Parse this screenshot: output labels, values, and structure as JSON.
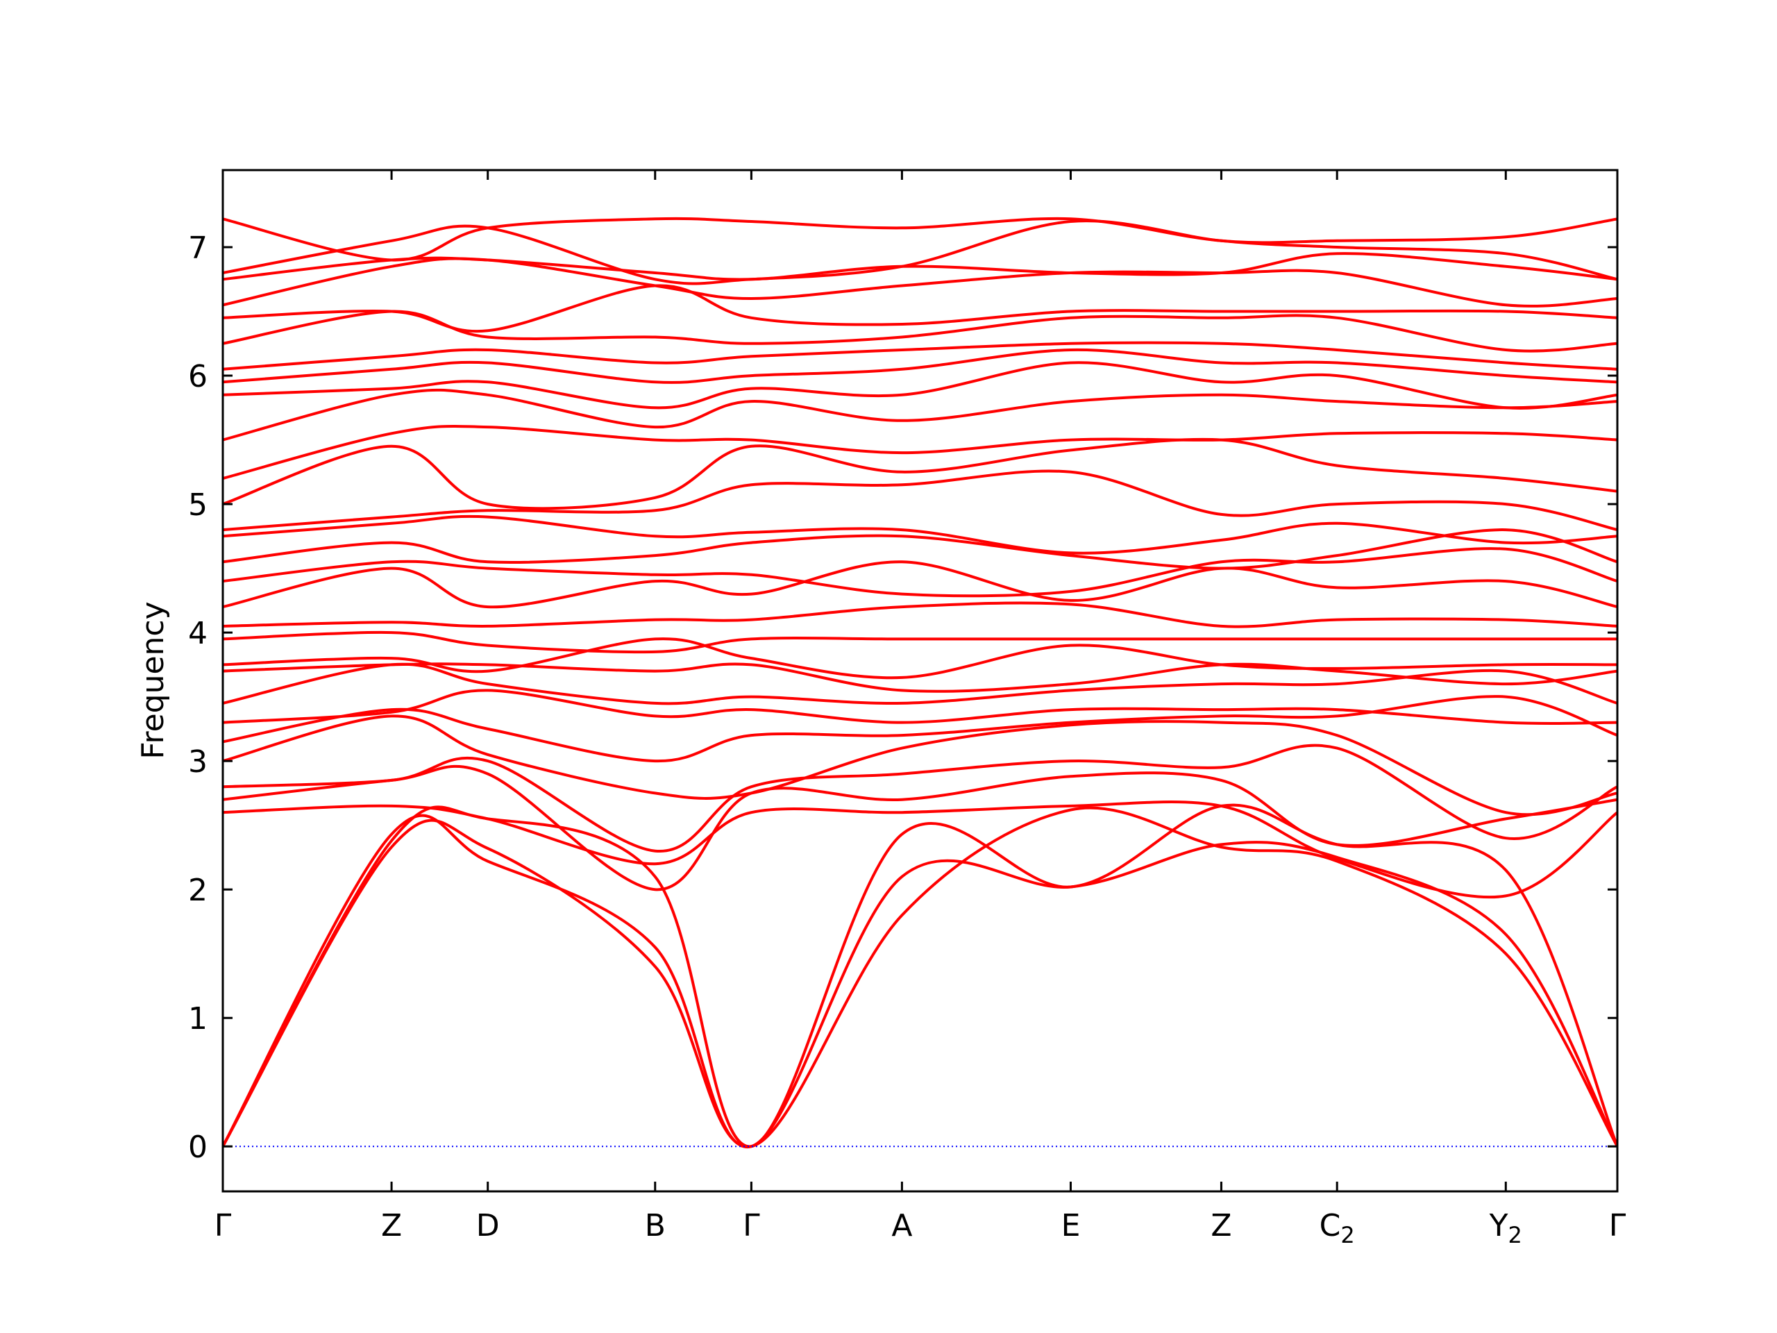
{
  "chart_data": {
    "type": "line",
    "title": "",
    "xlabel": "",
    "ylabel": "Frequency",
    "ylim": [
      -0.35,
      7.6
    ],
    "yticks": [
      0,
      1,
      2,
      3,
      4,
      5,
      6,
      7
    ],
    "grid": false,
    "legend": "none",
    "line_color": "#ff0000",
    "zero_line_color": "#0000ff",
    "high_points": [
      {
        "label": "Γ",
        "sub": "",
        "x": 0.0
      },
      {
        "label": "Z",
        "sub": "",
        "x": 1.21
      },
      {
        "label": "D",
        "sub": "",
        "x": 1.9
      },
      {
        "label": "B",
        "sub": "",
        "x": 3.1
      },
      {
        "label": "Γ",
        "sub": "",
        "x": 3.79
      },
      {
        "label": "A",
        "sub": "",
        "x": 4.87
      },
      {
        "label": "E",
        "sub": "",
        "x": 6.08
      },
      {
        "label": "Z",
        "sub": "",
        "x": 7.16
      },
      {
        "label": "C",
        "sub": "2",
        "x": 7.99
      },
      {
        "label": "Y",
        "sub": "2",
        "x": 9.2
      },
      {
        "label": "Γ",
        "sub": "",
        "x": 10.0
      }
    ],
    "series": [
      {
        "y": [
          0.0,
          2.33,
          2.32,
          1.4,
          0.0,
          1.8,
          2.62,
          2.33,
          2.22,
          1.5,
          0.0
        ]
      },
      {
        "y": [
          0.0,
          2.43,
          2.22,
          1.55,
          0.0,
          2.1,
          2.02,
          2.35,
          2.25,
          1.65,
          0.0
        ]
      },
      {
        "y": [
          0.0,
          2.38,
          2.55,
          2.1,
          0.0,
          2.43,
          2.02,
          2.65,
          2.35,
          2.15,
          0.0
        ]
      },
      {
        "y": [
          2.6,
          2.65,
          2.55,
          2.2,
          2.6,
          2.6,
          2.65,
          2.65,
          2.24,
          1.95,
          2.6
        ]
      },
      {
        "y": [
          2.7,
          2.85,
          2.9,
          2.0,
          2.75,
          2.7,
          2.88,
          2.85,
          2.35,
          2.55,
          2.7
        ]
      },
      {
        "y": [
          2.8,
          2.85,
          3.0,
          2.3,
          2.8,
          2.9,
          3.0,
          2.95,
          3.1,
          2.4,
          2.8
        ]
      },
      {
        "y": [
          3.0,
          3.35,
          3.05,
          2.75,
          2.75,
          3.1,
          3.28,
          3.3,
          3.2,
          2.6,
          2.75
        ]
      },
      {
        "y": [
          3.15,
          3.4,
          3.25,
          3.0,
          3.2,
          3.2,
          3.3,
          3.35,
          3.35,
          3.5,
          3.2
        ]
      },
      {
        "y": [
          3.3,
          3.38,
          3.55,
          3.35,
          3.4,
          3.3,
          3.4,
          3.4,
          3.4,
          3.3,
          3.3
        ]
      },
      {
        "y": [
          3.45,
          3.75,
          3.6,
          3.45,
          3.5,
          3.45,
          3.55,
          3.6,
          3.6,
          3.7,
          3.45
        ]
      },
      {
        "y": [
          3.7,
          3.75,
          3.75,
          3.7,
          3.75,
          3.55,
          3.6,
          3.75,
          3.7,
          3.6,
          3.7
        ]
      },
      {
        "y": [
          3.75,
          3.8,
          3.7,
          3.95,
          3.8,
          3.65,
          3.9,
          3.75,
          3.72,
          3.75,
          3.75
        ]
      },
      {
        "y": [
          3.95,
          4.0,
          3.9,
          3.85,
          3.95,
          3.95,
          3.95,
          3.95,
          3.95,
          3.95,
          3.95
        ]
      },
      {
        "y": [
          4.05,
          4.08,
          4.05,
          4.1,
          4.1,
          4.2,
          4.22,
          4.05,
          4.1,
          4.1,
          4.05
        ]
      },
      {
        "y": [
          4.2,
          4.5,
          4.2,
          4.4,
          4.3,
          4.55,
          4.25,
          4.5,
          4.35,
          4.4,
          4.2
        ]
      },
      {
        "y": [
          4.4,
          4.55,
          4.5,
          4.45,
          4.45,
          4.3,
          4.32,
          4.55,
          4.55,
          4.65,
          4.4
        ]
      },
      {
        "y": [
          4.55,
          4.7,
          4.55,
          4.6,
          4.7,
          4.75,
          4.6,
          4.5,
          4.6,
          4.8,
          4.55
        ]
      },
      {
        "y": [
          4.75,
          4.85,
          4.9,
          4.75,
          4.78,
          4.8,
          4.62,
          4.72,
          4.85,
          4.7,
          4.75
        ]
      },
      {
        "y": [
          4.8,
          4.9,
          4.95,
          4.95,
          5.15,
          5.15,
          5.25,
          4.92,
          5.0,
          5.0,
          4.8
        ]
      },
      {
        "y": [
          5.0,
          5.45,
          5.0,
          5.05,
          5.45,
          5.25,
          5.42,
          5.5,
          5.3,
          5.2,
          5.1
        ]
      },
      {
        "y": [
          5.2,
          5.55,
          5.6,
          5.5,
          5.5,
          5.4,
          5.5,
          5.5,
          5.55,
          5.55,
          5.5
        ]
      },
      {
        "y": [
          5.5,
          5.85,
          5.85,
          5.6,
          5.8,
          5.65,
          5.8,
          5.85,
          5.8,
          5.75,
          5.8
        ]
      },
      {
        "y": [
          5.85,
          5.9,
          5.95,
          5.75,
          5.9,
          5.85,
          6.1,
          5.95,
          6.0,
          5.75,
          5.85
        ]
      },
      {
        "y": [
          5.95,
          6.05,
          6.1,
          5.95,
          6.0,
          6.05,
          6.2,
          6.1,
          6.1,
          6.0,
          5.95
        ]
      },
      {
        "y": [
          6.05,
          6.15,
          6.2,
          6.1,
          6.15,
          6.2,
          6.25,
          6.25,
          6.2,
          6.1,
          6.05
        ]
      },
      {
        "y": [
          6.25,
          6.5,
          6.3,
          6.3,
          6.25,
          6.3,
          6.45,
          6.45,
          6.45,
          6.2,
          6.25
        ]
      },
      {
        "y": [
          6.45,
          6.5,
          6.35,
          6.7,
          6.45,
          6.4,
          6.5,
          6.5,
          6.5,
          6.5,
          6.45
        ]
      },
      {
        "y": [
          6.55,
          6.85,
          6.9,
          6.7,
          6.6,
          6.7,
          6.8,
          6.8,
          6.8,
          6.55,
          6.6
        ]
      },
      {
        "y": [
          6.75,
          6.9,
          6.9,
          6.8,
          6.75,
          6.85,
          6.8,
          6.8,
          6.95,
          6.85,
          6.75
        ]
      },
      {
        "y": [
          6.8,
          7.05,
          7.15,
          6.75,
          6.75,
          6.85,
          7.2,
          7.05,
          7.0,
          6.95,
          6.75
        ]
      },
      {
        "y": [
          7.22,
          6.9,
          7.15,
          7.22,
          7.2,
          7.15,
          7.22,
          7.05,
          7.05,
          7.08,
          7.22
        ]
      }
    ]
  }
}
